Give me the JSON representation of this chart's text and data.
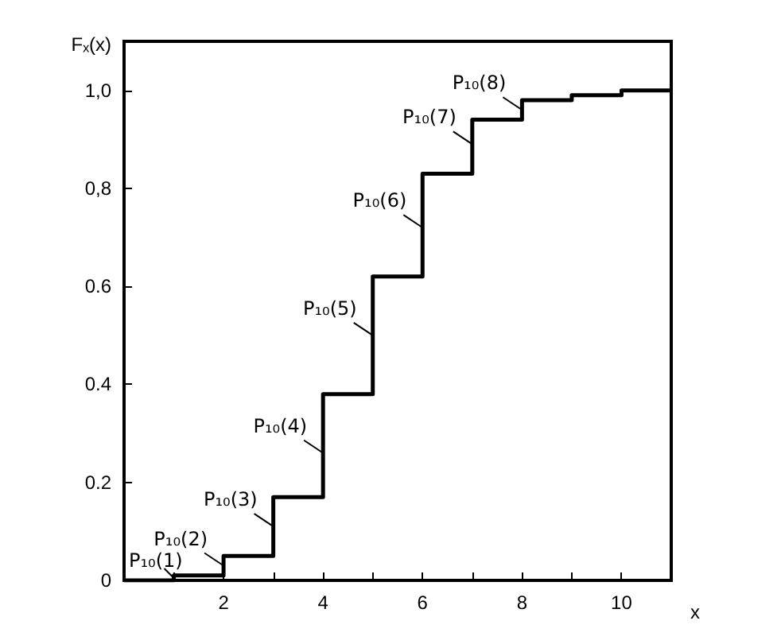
{
  "chart_data": {
    "type": "step",
    "ylabel": "Fₓ(x)",
    "xlabel": "x",
    "x": [
      0,
      1,
      2,
      3,
      4,
      5,
      6,
      7,
      8,
      9,
      10,
      11
    ],
    "series": [
      {
        "color": "#000000",
        "values": [
          0,
          0.01,
          0.05,
          0.17,
          0.38,
          0.62,
          0.83,
          0.94,
          0.98,
          0.99,
          1.0,
          1.0
        ]
      }
    ],
    "xlim": [
      0,
      11
    ],
    "xticks": [
      {
        "value": 1,
        "label": null
      },
      2,
      {
        "value": 3,
        "label": null
      },
      4,
      {
        "value": 5,
        "label": null
      },
      6,
      {
        "value": 7,
        "label": null
      },
      8,
      {
        "value": 9,
        "label": null
      },
      10
    ],
    "ylim": [
      0,
      1.1
    ],
    "yticks": [
      0,
      0.2,
      0.4,
      0.6,
      {
        "value": 0.8,
        "label": "0,8"
      },
      {
        "value": 1.0,
        "label": "1,0"
      }
    ],
    "grid": false,
    "marker": "none",
    "annotations": [
      {
        "text": "P₁₀(1)",
        "x": 1,
        "y": 0.005
      },
      {
        "text": "P₁₀(2)",
        "x": 2,
        "y": 0.03
      },
      {
        "text": "P₁₀(3)",
        "x": 3,
        "y": 0.11
      },
      {
        "text": "P₁₀(4)",
        "x": 4,
        "y": 0.26
      },
      {
        "text": "P₁₀(5)",
        "x": 5,
        "y": 0.5
      },
      {
        "text": "P₁₀(6)",
        "x": 6,
        "y": 0.72
      },
      {
        "text": "P₁₀(7)",
        "x": 7,
        "y": 0.89
      },
      {
        "text": "P₁₀(8)",
        "x": 8,
        "y": 0.96
      }
    ]
  }
}
